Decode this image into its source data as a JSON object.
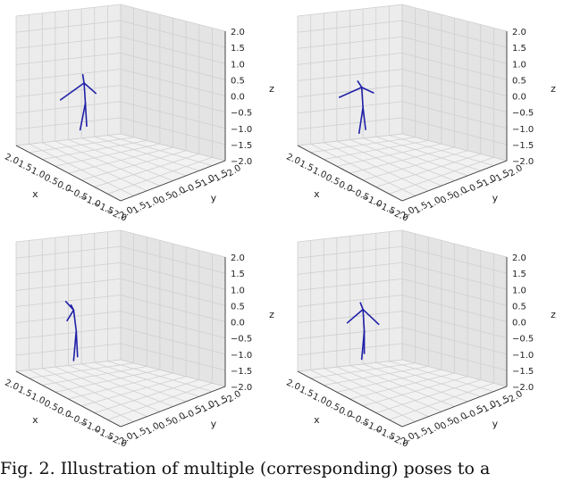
{
  "chart_data": [
    {
      "type": "scatter",
      "subtype": "3d-wireframe-skeleton",
      "title": "",
      "xlabel": "x",
      "ylabel": "y",
      "zlabel": "z",
      "xlim": [
        -2.0,
        2.0
      ],
      "ylim": [
        -2.0,
        2.0
      ],
      "zlim": [
        -2.0,
        2.0
      ],
      "xticks": [
        "2.0",
        "1.5",
        "1.0",
        "0.5",
        "0.0",
        "−0.5",
        "−1.0",
        "−1.5",
        "−2.0"
      ],
      "yticks": [
        "2.0",
        "1.5",
        "1.0",
        "0.5",
        "0.0",
        "−0.5",
        "−1.0",
        "−1.5",
        "−2.0"
      ],
      "zticks": [
        "2.0",
        "1.5",
        "1.0",
        "0.5",
        "0.0",
        "−0.5",
        "−1.0",
        "−1.5",
        "−2.0"
      ],
      "grid": true,
      "color": "#1f1fa8",
      "skeleton": {
        "head": [
          0.2,
          -0.05,
          1.55
        ],
        "neck": [
          0.1,
          0.0,
          1.35
        ],
        "l_hand": [
          0.45,
          0.55,
          0.85
        ],
        "r_hand": [
          -0.25,
          -0.1,
          1.15
        ],
        "hip": [
          0.05,
          0.0,
          0.75
        ],
        "l_foot": [
          0.15,
          -0.15,
          -0.05
        ],
        "r_foot": [
          0.1,
          0.15,
          -0.05
        ]
      }
    },
    {
      "type": "scatter",
      "subtype": "3d-wireframe-skeleton",
      "title": "",
      "xlabel": "x",
      "ylabel": "y",
      "zlabel": "z",
      "xlim": [
        -2.0,
        2.0
      ],
      "ylim": [
        -2.0,
        2.0
      ],
      "zlim": [
        -2.0,
        2.0
      ],
      "xticks": [
        "2.0",
        "1.5",
        "1.0",
        "0.5",
        "0.0",
        "−0.5",
        "−1.0",
        "−1.5",
        "−2.0"
      ],
      "yticks": [
        "2.0",
        "1.5",
        "1.0",
        "0.5",
        "0.0",
        "−0.5",
        "−1.0",
        "−1.5",
        "−2.0"
      ],
      "zticks": [
        "2.0",
        "1.5",
        "1.0",
        "0.5",
        "0.0",
        "−0.5",
        "−1.0",
        "−1.5",
        "−2.0"
      ],
      "grid": true,
      "color": "#1f1fa8",
      "skeleton": {
        "head": [
          0.1,
          0.3,
          1.5
        ],
        "neck": [
          0.05,
          0.2,
          1.3
        ],
        "l_hand": [
          0.6,
          0.5,
          0.85
        ],
        "r_hand": [
          -0.3,
          0.1,
          1.25
        ],
        "hip": [
          0.0,
          0.2,
          0.7
        ],
        "l_foot": [
          0.05,
          0.05,
          -0.05
        ],
        "r_foot": [
          0.0,
          0.35,
          -0.05
        ]
      }
    },
    {
      "type": "scatter",
      "subtype": "3d-wireframe-skeleton",
      "title": "",
      "xlabel": "x",
      "ylabel": "y",
      "zlabel": "z",
      "xlim": [
        -2.0,
        2.0
      ],
      "ylim": [
        -2.0,
        2.0
      ],
      "zlim": [
        -2.0,
        2.0
      ],
      "xticks": [
        "2.0",
        "1.5",
        "1.0",
        "0.5",
        "0.0",
        "−0.5",
        "−1.0",
        "−1.5",
        "−2.0"
      ],
      "yticks": [
        "2.0",
        "1.5",
        "1.0",
        "0.5",
        "0.0",
        "−0.5",
        "−1.0",
        "−1.5",
        "−2.0"
      ],
      "zticks": [
        "2.0",
        "1.5",
        "1.0",
        "0.5",
        "0.0",
        "−0.5",
        "−1.0",
        "−1.5",
        "−2.0"
      ],
      "grid": true,
      "color": "#1f1fa8",
      "skeleton": {
        "head": [
          0.2,
          0.4,
          1.55
        ],
        "neck": [
          0.15,
          0.35,
          1.4
        ],
        "l_hand": [
          0.7,
          0.1,
          1.35
        ],
        "r_hand": [
          -0.05,
          0.8,
          1.3
        ],
        "hip": [
          0.05,
          0.35,
          0.8
        ],
        "l_foot": [
          0.1,
          0.25,
          -0.05
        ],
        "r_foot": [
          0.0,
          0.5,
          -0.05
        ]
      }
    },
    {
      "type": "scatter",
      "subtype": "3d-wireframe-skeleton",
      "title": "",
      "xlabel": "x",
      "ylabel": "y",
      "zlabel": "z",
      "xlim": [
        -2.0,
        2.0
      ],
      "ylim": [
        -2.0,
        2.0
      ],
      "zlim": [
        -2.0,
        2.0
      ],
      "xticks": [
        "2.0",
        "1.5",
        "1.0",
        "0.5",
        "0.0",
        "−0.5",
        "−1.0",
        "−1.5",
        "−2.0"
      ],
      "yticks": [
        "2.0",
        "1.5",
        "1.0",
        "0.5",
        "0.0",
        "−0.5",
        "−1.0",
        "−1.5",
        "−2.0"
      ],
      "zticks": [
        "2.0",
        "1.5",
        "1.0",
        "0.5",
        "0.0",
        "−0.5",
        "−1.0",
        "−1.5",
        "−2.0"
      ],
      "grid": true,
      "color": "#1f1fa8",
      "skeleton": {
        "head": [
          0.1,
          0.2,
          1.6
        ],
        "neck": [
          0.05,
          0.15,
          1.4
        ],
        "l_hand": [
          0.35,
          0.45,
          0.95
        ],
        "r_hand": [
          -0.35,
          -0.05,
          1.05
        ],
        "hip": [
          0.0,
          0.15,
          0.75
        ],
        "l_foot": [
          0.15,
          0.0,
          -0.05
        ],
        "r_foot": [
          -0.05,
          0.3,
          -0.05
        ]
      }
    }
  ],
  "caption": "Fig. 2.  Illustration of multiple (corresponding) poses to a"
}
